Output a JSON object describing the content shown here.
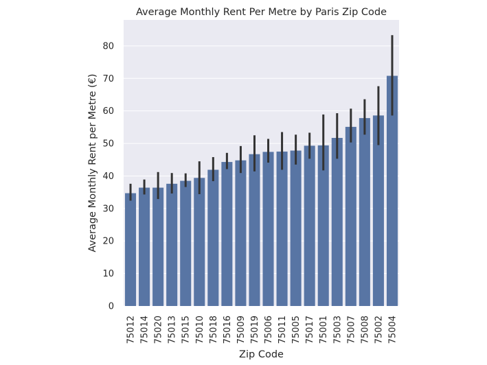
{
  "chart_data": {
    "type": "bar",
    "title": "Average Monthly Rent Per Metre by Paris Zip Code",
    "xlabel": "Zip Code",
    "ylabel": "Average Monthly Rent per Metre (€)",
    "categories": [
      "75012",
      "75014",
      "75020",
      "75013",
      "75015",
      "75010",
      "75018",
      "75016",
      "75009",
      "75019",
      "75006",
      "75011",
      "75005",
      "75017",
      "75001",
      "75003",
      "75007",
      "75008",
      "75002",
      "75004"
    ],
    "values": [
      34.7,
      36.4,
      36.4,
      37.6,
      38.5,
      39.4,
      41.9,
      44.3,
      44.8,
      46.7,
      47.4,
      47.5,
      47.8,
      49.3,
      49.4,
      51.7,
      55.1,
      57.8,
      58.6,
      70.8
    ],
    "error_low": [
      32.4,
      34.3,
      32.9,
      34.6,
      36.6,
      34.4,
      38.4,
      42.1,
      40.9,
      41.4,
      44.1,
      41.9,
      43.5,
      45.3,
      41.7,
      45.3,
      50.3,
      52.7,
      49.5,
      58.6
    ],
    "error_high": [
      37.6,
      38.9,
      41.2,
      40.9,
      40.8,
      44.5,
      45.8,
      47.1,
      49.2,
      52.5,
      51.4,
      53.5,
      52.7,
      53.3,
      58.9,
      59.3,
      60.7,
      63.6,
      67.6,
      83.3
    ],
    "ylim": [
      0,
      88
    ],
    "yticks": [
      0,
      10,
      20,
      30,
      40,
      50,
      60,
      70,
      80
    ],
    "ytick_labels": [
      "0",
      "10",
      "20",
      "30",
      "40",
      "50",
      "60",
      "70",
      "80"
    ],
    "grid": true,
    "colors": {
      "bar": "#5875a4",
      "error_bar": "#333333",
      "background": "#eaeaf2",
      "grid": "#ffffff",
      "text": "#262626"
    }
  }
}
